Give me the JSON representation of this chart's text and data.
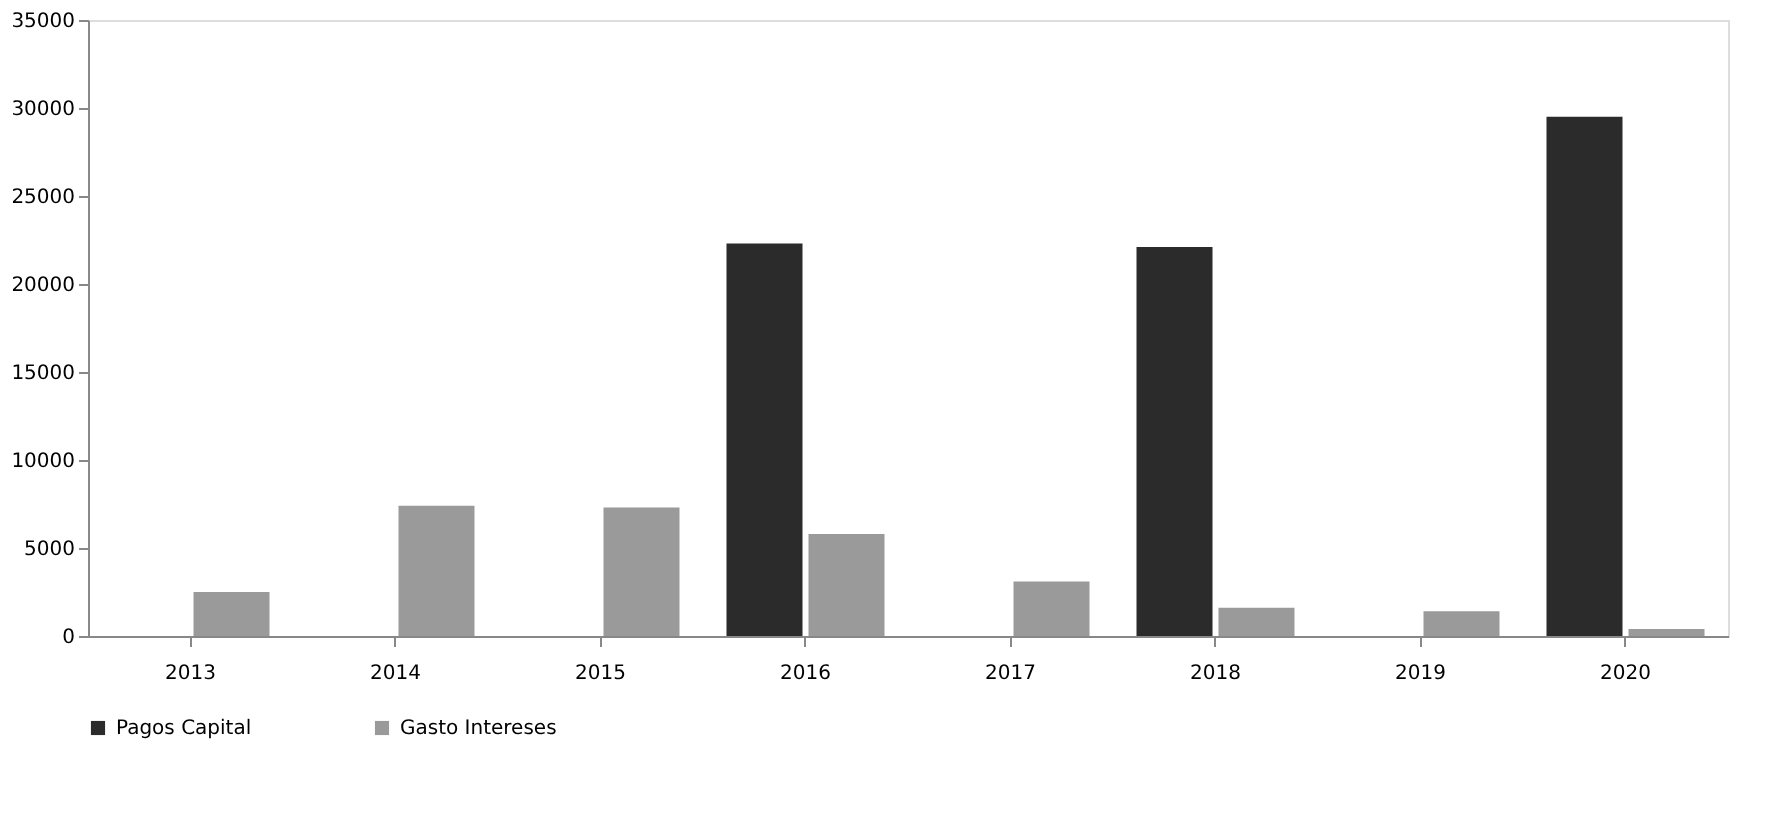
{
  "chart_data": {
    "type": "bar",
    "categories": [
      "2013",
      "2014",
      "2015",
      "2016",
      "2017",
      "2018",
      "2019",
      "2020"
    ],
    "series": [
      {
        "name": "Pagos Capital",
        "color": "#2b2b2b",
        "values": [
          0,
          0,
          0,
          22300,
          0,
          22100,
          0,
          29500
        ]
      },
      {
        "name": "Gasto Intereses",
        "color": "#9a9a9a",
        "values": [
          2500,
          7400,
          7300,
          5800,
          3100,
          1600,
          1400,
          400
        ]
      }
    ],
    "ylim": [
      0,
      35000
    ],
    "yticks": [
      0,
      5000,
      10000,
      15000,
      20000,
      25000,
      30000,
      35000
    ],
    "grid": false,
    "legend": "bottom"
  }
}
